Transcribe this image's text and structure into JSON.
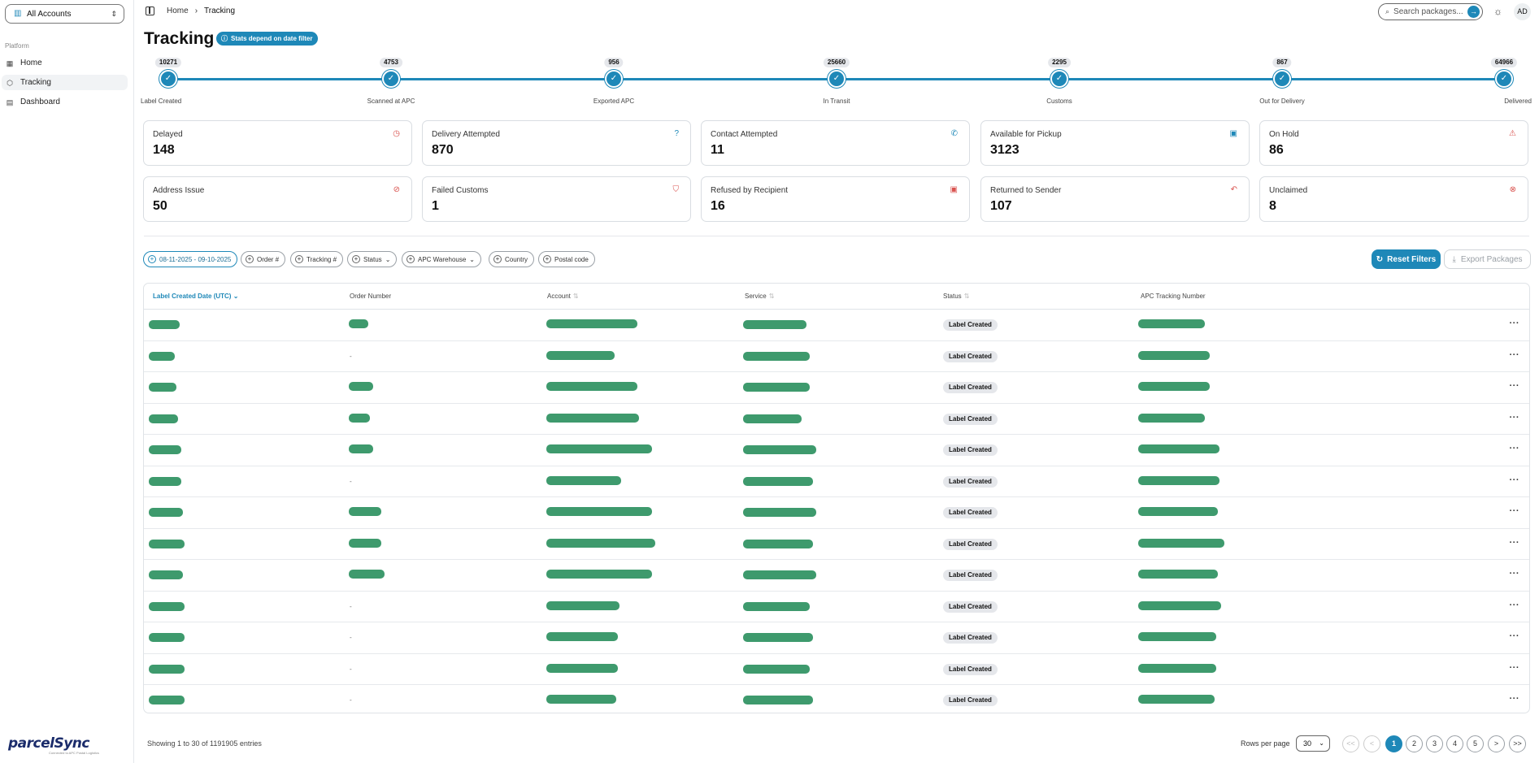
{
  "sidebar": {
    "account_select": "All Accounts",
    "section_label": "Platform",
    "items": [
      {
        "label": "Home",
        "icon": "grid-icon"
      },
      {
        "label": "Tracking",
        "icon": "package-icon",
        "active": true
      },
      {
        "label": "Dashboard",
        "icon": "document-icon"
      }
    ],
    "logo": {
      "text": "parcelSync",
      "tagline": "Connected to APC Postal Logistics"
    }
  },
  "header": {
    "breadcrumb": [
      "Home",
      "Tracking"
    ],
    "search_placeholder": "Search packages...",
    "avatar": "AD"
  },
  "page": {
    "title": "Tracking",
    "stats_badge": "Stats depend on date filter"
  },
  "progress_steps": [
    {
      "count": "10271",
      "label": "Label Created"
    },
    {
      "count": "4753",
      "label": "Scanned at APC"
    },
    {
      "count": "956",
      "label": "Exported APC"
    },
    {
      "count": "25660",
      "label": "In Transit"
    },
    {
      "count": "2295",
      "label": "Customs"
    },
    {
      "count": "867",
      "label": "Out for Delivery"
    },
    {
      "count": "64966",
      "label": "Delivered"
    }
  ],
  "stat_cards": [
    {
      "title": "Delayed",
      "value": "148",
      "icon": "clock-icon",
      "color": "#d9534f"
    },
    {
      "title": "Delivery Attempted",
      "value": "870",
      "icon": "help-circle-icon",
      "color": "#1e88b8"
    },
    {
      "title": "Contact Attempted",
      "value": "11",
      "icon": "phone-icon",
      "color": "#1e88b8"
    },
    {
      "title": "Available for Pickup",
      "value": "3123",
      "icon": "box-icon",
      "color": "#1e88b8"
    },
    {
      "title": "On Hold",
      "value": "86",
      "icon": "alert-triangle-icon",
      "color": "#d9534f"
    },
    {
      "title": "Address Issue",
      "value": "50",
      "icon": "map-pin-off-icon",
      "color": "#d9534f"
    },
    {
      "title": "Failed Customs",
      "value": "1",
      "icon": "shield-alert-icon",
      "color": "#d9534f"
    },
    {
      "title": "Refused by Recipient",
      "value": "16",
      "icon": "box-x-icon",
      "color": "#d9534f"
    },
    {
      "title": "Returned to Sender",
      "value": "107",
      "icon": "undo-icon",
      "color": "#d9534f"
    },
    {
      "title": "Unclaimed",
      "value": "8",
      "icon": "x-circle-icon",
      "color": "#d9534f"
    }
  ],
  "filters": {
    "date_range": "08-11-2025 - 09-10-2025",
    "chips": [
      "Order #",
      "Tracking #",
      "Status",
      "APC Warehouse",
      "Country",
      "Postal code"
    ],
    "reset_label": "Reset Filters",
    "export_label": "Export Packages"
  },
  "table": {
    "columns": [
      "Label Created Date (UTC)",
      "Order Number",
      "Account",
      "Service",
      "Status",
      "APC Tracking Number"
    ],
    "rows": [
      {
        "order": "",
        "status": "Label Created"
      },
      {
        "order": "-",
        "status": "Label Created"
      },
      {
        "order": "",
        "status": "Label Created"
      },
      {
        "order": "",
        "status": "Label Created"
      },
      {
        "order": "",
        "status": "Label Created"
      },
      {
        "order": "-",
        "status": "Label Created"
      },
      {
        "order": "",
        "status": "Label Created"
      },
      {
        "order": "",
        "status": "Label Created"
      },
      {
        "order": "",
        "status": "Label Created"
      },
      {
        "order": "-",
        "status": "Label Created"
      },
      {
        "order": "-",
        "status": "Label Created"
      },
      {
        "order": "-",
        "status": "Label Created"
      },
      {
        "order": "-",
        "status": "Label Created"
      }
    ]
  },
  "footer": {
    "showing": "Showing 1 to 30 of 1191905 entries",
    "rows_per_page_label": "Rows per page",
    "rows_per_page": "30",
    "pages": [
      "1",
      "2",
      "3",
      "4",
      "5"
    ],
    "nav": {
      "first": "<<",
      "prev": "<",
      "next": ">",
      "last": ">>"
    }
  },
  "colors": {
    "accent": "#1e88b8",
    "danger": "#d9534f",
    "redaction": "#3e9a6d"
  }
}
